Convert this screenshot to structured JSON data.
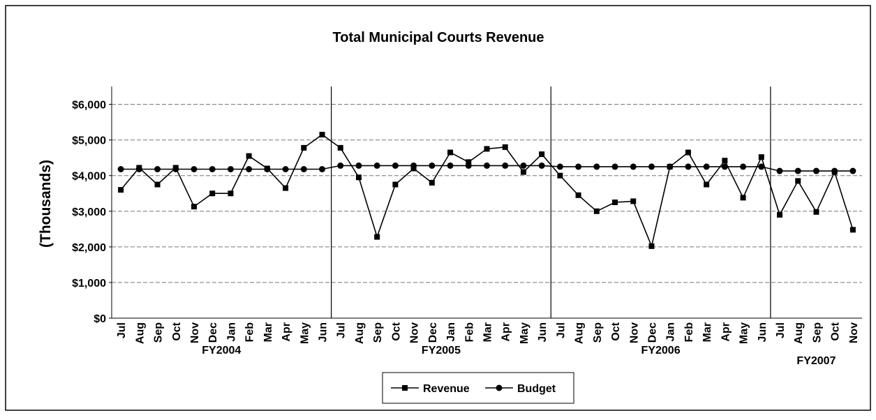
{
  "chart_data": {
    "type": "line",
    "title": "Total Municipal Courts Revenue",
    "ylabel": "(Thousands)",
    "categories": [
      "Jul",
      "Aug",
      "Sep",
      "Oct",
      "Nov",
      "Dec",
      "Jan",
      "Feb",
      "Mar",
      "Apr",
      "May",
      "Jun",
      "Jul",
      "Aug",
      "Sep",
      "Oct",
      "Nov",
      "Dec",
      "Jan",
      "Feb",
      "Mar",
      "Apr",
      "May",
      "Jun",
      "Jul",
      "Aug",
      "Sep",
      "Oct",
      "Nov",
      "Dec",
      "Jan",
      "Feb",
      "Mar",
      "Apr",
      "May",
      "Jun",
      "Jul",
      "Aug",
      "Sep",
      "Oct",
      "Nov"
    ],
    "groups": [
      {
        "name": "FY2004",
        "size": 12
      },
      {
        "name": "FY2005",
        "size": 12
      },
      {
        "name": "FY2006",
        "size": 12
      },
      {
        "name": "FY2007",
        "size": 5
      }
    ],
    "series": [
      {
        "name": "Revenue",
        "color": "#000000",
        "marker": "square",
        "values": [
          3600,
          4220,
          3750,
          4220,
          3130,
          3500,
          3500,
          4550,
          4200,
          3650,
          4780,
          5150,
          4780,
          3950,
          2280,
          3750,
          4200,
          3800,
          4650,
          4380,
          4750,
          4800,
          4100,
          4600,
          4000,
          3450,
          3000,
          3250,
          3280,
          2020,
          4250,
          4650,
          3750,
          4420,
          3380,
          4520,
          2900,
          3850,
          2980,
          4100,
          2480
        ]
      },
      {
        "name": "Budget",
        "color": "#000000",
        "marker": "circle",
        "values": [
          4180,
          4180,
          4180,
          4180,
          4180,
          4180,
          4180,
          4180,
          4180,
          4180,
          4180,
          4180,
          4280,
          4280,
          4280,
          4280,
          4280,
          4280,
          4280,
          4280,
          4280,
          4280,
          4280,
          4280,
          4250,
          4250,
          4250,
          4250,
          4250,
          4250,
          4250,
          4250,
          4250,
          4250,
          4250,
          4250,
          4130,
          4130,
          4130,
          4130,
          4130
        ]
      }
    ],
    "ylim": [
      0,
      6500
    ],
    "yticks": [
      {
        "value": 0,
        "label": "$0"
      },
      {
        "value": 1000,
        "label": "$1,000"
      },
      {
        "value": 2000,
        "label": "$2,000"
      },
      {
        "value": 3000,
        "label": "$3,000"
      },
      {
        "value": 4000,
        "label": "$4,000"
      },
      {
        "value": 5000,
        "label": "$5,000"
      },
      {
        "value": 6000,
        "label": "$6,000"
      }
    ],
    "grid": true,
    "legend": "bottom"
  }
}
